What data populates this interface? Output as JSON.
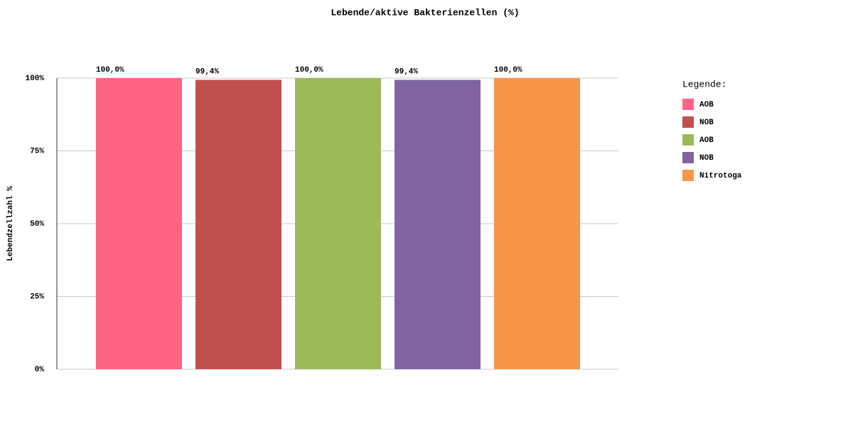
{
  "chart_data": {
    "type": "bar",
    "title": "Lebende/aktive Bakterienzellen (%)",
    "y_label": "Lebendzellzahl %",
    "legend_title": "Legende:",
    "legend_position": "right",
    "series": [
      {
        "name": "AOB",
        "color": "#ff6384",
        "values": [
          100
        ],
        "value_labels": [
          "100,0%"
        ]
      },
      {
        "name": "NOB",
        "color": "#c0504d",
        "values": [
          99.4
        ],
        "value_labels": [
          "99,4%"
        ]
      },
      {
        "name": "AOB",
        "color": "#9bbb59",
        "values": [
          100
        ],
        "value_labels": [
          "100,0%"
        ]
      },
      {
        "name": "NOB",
        "color": "#8064a2",
        "values": [
          99.4
        ],
        "value_labels": [
          "99,4%"
        ]
      },
      {
        "name": "Nitrotoga",
        "color": "#f79646",
        "values": [
          100
        ],
        "value_labels": [
          "100,0%"
        ]
      }
    ],
    "ylim": [
      0,
      100
    ],
    "yticks": [
      {
        "value": 0,
        "label": "0%"
      },
      {
        "value": 25,
        "label": "25%"
      },
      {
        "value": 50,
        "label": "50%"
      },
      {
        "value": 75,
        "label": "75%"
      },
      {
        "value": 100,
        "label": "100%"
      }
    ],
    "grid": true
  }
}
